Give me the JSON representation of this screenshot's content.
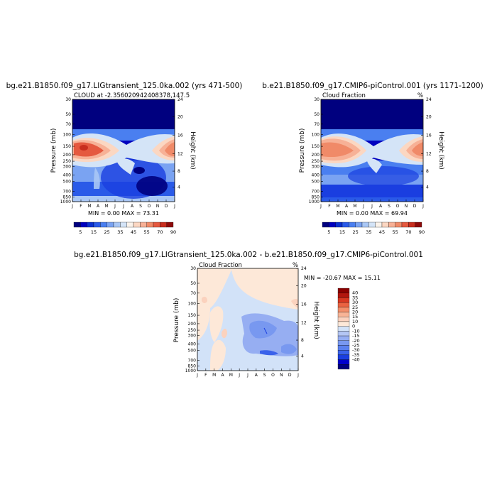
{
  "colors": {
    "scale_a": [
      "#00007f",
      "#0000bf",
      "#0a30d0",
      "#2a5ae8",
      "#4a7ff0",
      "#7aa3f2",
      "#a9c7f5",
      "#d4e4f7",
      "#faf2ea",
      "#fbd7c2",
      "#f7b196",
      "#f08a68",
      "#e5593f",
      "#c82e1e",
      "#8e0a0a"
    ],
    "scale_diff": [
      "#00007f",
      "#0000cc",
      "#1a3ee0",
      "#3a62ea",
      "#5a80ee",
      "#7898f0",
      "#96aef2",
      "#b4c6f4",
      "#d2e2f8",
      "#fde8d8",
      "#fbd2be",
      "#f8b496",
      "#f38f6b",
      "#ea6342",
      "#d83822",
      "#b2160e",
      "#8b0000"
    ]
  },
  "chart_data": [
    {
      "type": "heatmap",
      "title": "bg.e21.B1850.f09_g17.LIGtransient_125.0ka.002 (yrs 471-500)",
      "subtitle_left": "CLOUD at -2.356020942408378,147.5",
      "subtitle_right": "",
      "ylabel": "Pressure (mb)",
      "ylabel_right": "Height (km)",
      "x_ticks": [
        "J",
        "F",
        "M",
        "A",
        "M",
        "J",
        "J",
        "A",
        "S",
        "O",
        "N",
        "D",
        "J"
      ],
      "y_ticks": [
        30,
        50,
        70,
        100,
        150,
        200,
        250,
        300,
        400,
        500,
        700,
        850,
        1000
      ],
      "y_ticks_right": [
        24,
        20,
        16,
        12,
        8,
        4
      ],
      "ylim": [
        30,
        1000
      ],
      "stats": "MIN =   0.00 MAX =  73.31",
      "min": 0.0,
      "max": 73.31,
      "colorbar_labels": [
        "5",
        "15",
        "25",
        "35",
        "45",
        "55",
        "70",
        "90"
      ]
    },
    {
      "type": "heatmap",
      "title": "b.e21.B1850.f09_g17.CMIP6-piControl.001 (yrs 1171-1200)",
      "subtitle_left": "Cloud Fraction",
      "subtitle_right": "%",
      "ylabel": "Pressure (mb)",
      "ylabel_right": "Height (km)",
      "x_ticks": [
        "J",
        "F",
        "M",
        "A",
        "M",
        "J",
        "J",
        "A",
        "S",
        "O",
        "N",
        "D",
        "J"
      ],
      "y_ticks": [
        30,
        50,
        70,
        100,
        150,
        200,
        250,
        300,
        400,
        500,
        700,
        850,
        1000
      ],
      "y_ticks_right": [
        24,
        20,
        16,
        12,
        8,
        4
      ],
      "ylim": [
        30,
        1000
      ],
      "stats": "MIN =   0.00 MAX =  69.94",
      "min": 0.0,
      "max": 69.94,
      "colorbar_labels": [
        "5",
        "15",
        "25",
        "35",
        "45",
        "55",
        "70",
        "90"
      ]
    },
    {
      "type": "heatmap",
      "title": "bg.e21.B1850.f09_g17.LIGtransient_125.0ka.002 - b.e21.B1850.f09_g17.CMIP6-piControl.001",
      "subtitle_left": "Cloud Fraction",
      "subtitle_right": "%",
      "ylabel": "Pressure (mb)",
      "ylabel_right": "Height (km)",
      "x_ticks": [
        "J",
        "F",
        "M",
        "A",
        "M",
        "J",
        "J",
        "A",
        "S",
        "O",
        "N",
        "D",
        "J"
      ],
      "y_ticks": [
        30,
        50,
        70,
        100,
        150,
        200,
        250,
        300,
        400,
        500,
        700,
        850,
        1000
      ],
      "y_ticks_right": [
        24,
        20,
        16,
        12,
        8,
        4
      ],
      "ylim": [
        30,
        1000
      ],
      "stats": "MIN = -20.67 MAX =  15.11",
      "min": -20.67,
      "max": 15.11,
      "colorbar_labels": [
        "40",
        "35",
        "30",
        "25",
        "20",
        "15",
        "10",
        "0",
        "-10",
        "-15",
        "-20",
        "-25",
        "-30",
        "-35",
        "-40"
      ]
    }
  ]
}
